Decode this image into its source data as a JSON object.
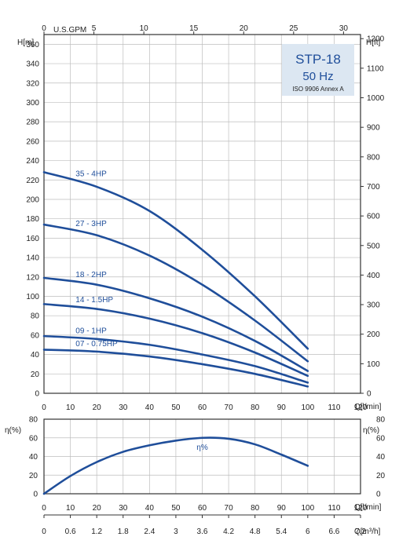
{
  "badge": {
    "title": "STP-18",
    "frequency": "50 Hz",
    "standard": "ISO 9906 Annex A",
    "bg_color": "#dce7f2"
  },
  "colors": {
    "curve": "#1f4e9a",
    "grid": "#bdbdbd"
  },
  "chart_data": [
    {
      "type": "line",
      "name": "head-curves",
      "y_label_left": "H[m]",
      "y_label_right": "H[ft]",
      "x_label": "Q[l/min]",
      "top_axis_label": "U.S.GPM",
      "x_ticks": [
        0,
        10,
        20,
        30,
        40,
        50,
        60,
        70,
        80,
        90,
        100,
        110,
        120
      ],
      "y_ticks": [
        0,
        20,
        40,
        60,
        80,
        100,
        120,
        140,
        160,
        180,
        200,
        220,
        240,
        260,
        280,
        300,
        320,
        340,
        360
      ],
      "ft_ticks": [
        0,
        100,
        200,
        300,
        400,
        500,
        600,
        700,
        800,
        900,
        1000,
        1100,
        1200
      ],
      "gpm_ticks": [
        0,
        5,
        10,
        15,
        20,
        25,
        30
      ],
      "xlim": [
        0,
        120
      ],
      "ylim": [
        0,
        370
      ],
      "grid": true,
      "series": [
        {
          "name": "35 - 4HP",
          "x": [
            0,
            20,
            40,
            60,
            80,
            100
          ],
          "y": [
            228,
            213,
            188,
            148,
            100,
            46
          ]
        },
        {
          "name": "27 - 3HP",
          "x": [
            0,
            20,
            40,
            60,
            80,
            100
          ],
          "y": [
            174,
            163,
            142,
            112,
            75,
            33
          ]
        },
        {
          "name": "18 - 2HP",
          "x": [
            0,
            20,
            40,
            60,
            80,
            100
          ],
          "y": [
            119,
            112,
            98,
            79,
            54,
            23
          ]
        },
        {
          "name": "14 - 1.5HP",
          "x": [
            0,
            20,
            40,
            60,
            80,
            100
          ],
          "y": [
            92,
            87,
            77,
            62,
            42,
            18
          ]
        },
        {
          "name": "09 - 1HP",
          "x": [
            0,
            20,
            40,
            60,
            80,
            100
          ],
          "y": [
            59,
            56,
            50,
            40,
            28,
            11
          ]
        },
        {
          "name": "07 - 0.75HP",
          "x": [
            0,
            20,
            40,
            60,
            80,
            100
          ],
          "y": [
            45,
            43,
            38,
            30,
            20,
            7
          ]
        }
      ]
    },
    {
      "type": "line",
      "name": "efficiency-curve",
      "y_label_left": "η(%)",
      "y_label_right": "η(%)",
      "x_label": "Q[l/min]",
      "bottom_axis_label": "Q[m³/h]",
      "x_ticks": [
        0,
        10,
        20,
        30,
        40,
        50,
        60,
        70,
        80,
        90,
        100,
        110,
        120
      ],
      "y_ticks": [
        0,
        20,
        40,
        60,
        80
      ],
      "m3h_ticks": [
        "0",
        "0.6",
        "1.2",
        "1.8",
        "2.4",
        "3",
        "3.6",
        "4.2",
        "4.8",
        "5.4",
        "6",
        "6.6",
        "7.2"
      ],
      "xlim": [
        0,
        120
      ],
      "ylim": [
        0,
        80
      ],
      "grid": true,
      "series": [
        {
          "name": "η%",
          "x": [
            0,
            10,
            20,
            30,
            40,
            50,
            60,
            70,
            80,
            90,
            100
          ],
          "y": [
            0,
            19,
            34,
            45,
            52,
            57,
            60,
            59,
            53,
            42,
            30
          ]
        }
      ]
    }
  ]
}
